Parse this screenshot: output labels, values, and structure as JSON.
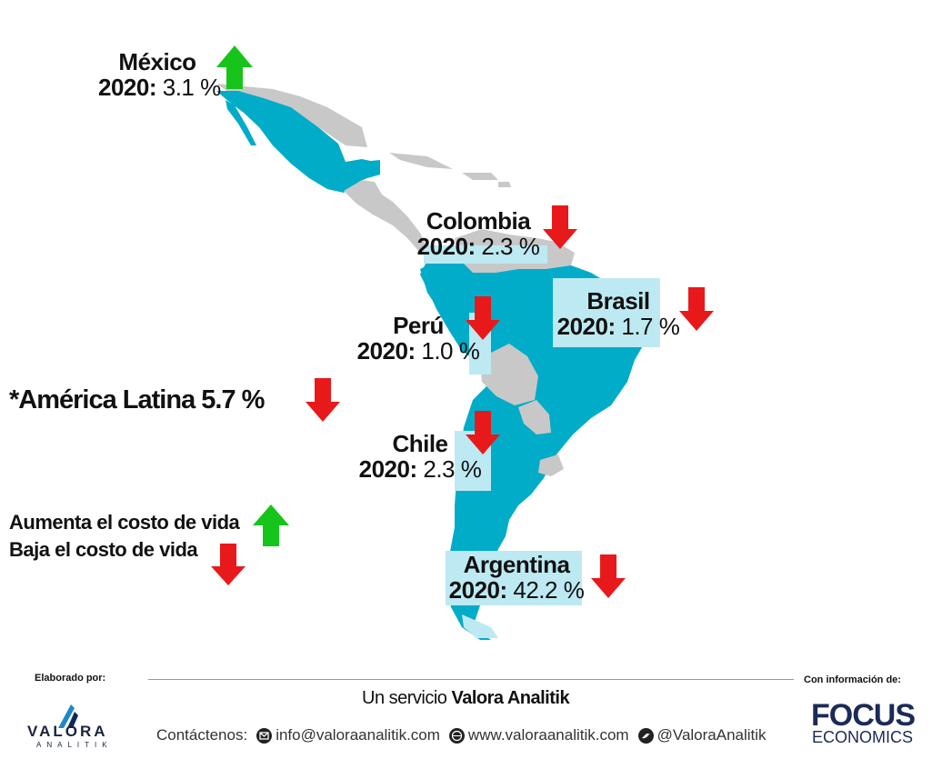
{
  "countries": {
    "mexico": {
      "name": "México",
      "year": "2020:",
      "value": "3.1 %",
      "trend": "up"
    },
    "colombia": {
      "name": "Colombia",
      "year": "2020:",
      "value": "2.3 %",
      "trend": "down"
    },
    "brasil": {
      "name": "Brasil",
      "year": "2020:",
      "value": "1.7 %",
      "trend": "down"
    },
    "peru": {
      "name": "Perú",
      "year": "2020:",
      "value": "1.0 %",
      "trend": "down"
    },
    "chile": {
      "name": "Chile",
      "year": "2020:",
      "value": "2.3 %",
      "trend": "down"
    },
    "argentina": {
      "name": "Argentina",
      "year": "2020:",
      "value": "42.2 %",
      "trend": "down"
    }
  },
  "latam": {
    "label": "*América Latina  5.7 %",
    "trend": "down"
  },
  "legend": {
    "up_label": "Aumenta el costo de vida",
    "down_label": "Baja el costo de vida"
  },
  "footer": {
    "elaborado": "Elaborado por:",
    "con_info": "Con información de:",
    "servicio_prefix": "Un servicio ",
    "servicio_brand": "Valora Analitik",
    "contact_label": "Contáctenos:",
    "email": "info@valoraanalitik.com",
    "web": "www.valoraanalitik.com",
    "twitter": "@ValoraAnalitik",
    "valora": "VALORA",
    "analitik": "ANALITIK",
    "focus": "FOCUS",
    "economics": "ECONOMICS"
  },
  "colors": {
    "land_highlight": "#00acc8",
    "land_other": "#c8c8c8",
    "label_box": "#bde9f2",
    "up": "#17c41b",
    "down": "#e8191b"
  },
  "icons": {
    "up": "up-arrow-icon",
    "down": "down-arrow-icon",
    "email": "email-icon",
    "web": "globe-icon",
    "twitter": "twitter-icon"
  }
}
